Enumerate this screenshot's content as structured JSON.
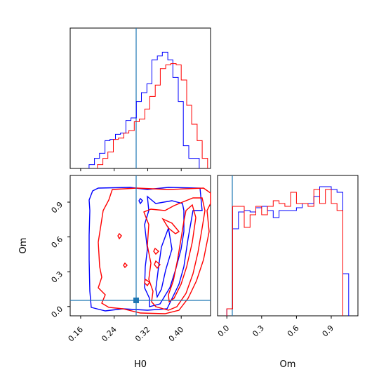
{
  "chart_data": [
    {
      "type": "histogram",
      "panel": "H0 marginal",
      "xlim": [
        0.135,
        0.47
      ],
      "truth": 0.29,
      "series": [
        {
          "name": "",
          "color": "#0000ff",
          "edges": [
            0.18,
            0.193,
            0.205,
            0.218,
            0.23,
            0.243,
            0.255,
            0.268,
            0.28,
            0.293,
            0.305,
            0.318,
            0.33,
            0.343,
            0.355,
            0.368,
            0.38,
            0.393,
            0.405,
            0.418,
            0.43,
            0.443
          ],
          "values": [
            0.03,
            0.08,
            0.12,
            0.22,
            0.23,
            0.27,
            0.28,
            0.38,
            0.4,
            0.53,
            0.6,
            0.67,
            0.86,
            0.89,
            0.92,
            0.86,
            0.72,
            0.53,
            0.18,
            0.08,
            0.08
          ]
        },
        {
          "name": "",
          "color": "#ff0000",
          "edges": [
            0.2,
            0.213,
            0.225,
            0.238,
            0.25,
            0.263,
            0.275,
            0.288,
            0.3,
            0.313,
            0.325,
            0.338,
            0.35,
            0.363,
            0.375,
            0.388,
            0.4,
            0.413,
            0.425,
            0.438,
            0.45,
            0.463
          ],
          "values": [
            0.03,
            0.08,
            0.13,
            0.23,
            0.24,
            0.28,
            0.3,
            0.37,
            0.39,
            0.47,
            0.57,
            0.66,
            0.79,
            0.82,
            0.83,
            0.82,
            0.7,
            0.5,
            0.35,
            0.22,
            0.08
          ]
        }
      ]
    },
    {
      "type": "contour",
      "panel": "H0 vs Om",
      "xlabel": "H0",
      "ylabel": "Om",
      "xlim": [
        0.135,
        0.47
      ],
      "ylim": [
        -0.08,
        1.13
      ],
      "xticks": [
        "0.16",
        "0.24",
        "0.32",
        "0.40"
      ],
      "yticks": [
        "0.0",
        "0.3",
        "0.6",
        "0.9"
      ],
      "truth": [
        0.29,
        0.05
      ],
      "series": [
        {
          "name": "",
          "color": "#0000ff",
          "levels": 3
        },
        {
          "name": "",
          "color": "#ff0000",
          "levels": 3
        }
      ]
    },
    {
      "type": "histogram",
      "panel": "Om marginal",
      "xlabel": "Om",
      "xlim": [
        -0.08,
        1.13
      ],
      "xticks": [
        "0.0",
        "0.3",
        "0.6",
        "0.9"
      ],
      "truth": 0.05,
      "series": [
        {
          "name": "",
          "color": "#0000ff",
          "edges": [
            0.0,
            0.05,
            0.1,
            0.15,
            0.2,
            0.25,
            0.3,
            0.35,
            0.4,
            0.45,
            0.5,
            0.55,
            0.6,
            0.65,
            0.7,
            0.75,
            0.8,
            0.85,
            0.9,
            0.95,
            1.0,
            1.05
          ],
          "values": [
            0.05,
            0.62,
            0.74,
            0.75,
            0.74,
            0.77,
            0.78,
            0.75,
            0.7,
            0.75,
            0.75,
            0.75,
            0.77,
            0.8,
            0.8,
            0.85,
            0.92,
            0.92,
            0.9,
            0.88,
            0.3
          ]
        },
        {
          "name": "",
          "color": "#ff0000",
          "edges": [
            0.0,
            0.05,
            0.1,
            0.15,
            0.2,
            0.25,
            0.3,
            0.35,
            0.4,
            0.45,
            0.5,
            0.55,
            0.6,
            0.65,
            0.7,
            0.75,
            0.8,
            0.85,
            0.9,
            0.95,
            1.0
          ],
          "values": [
            0.05,
            0.78,
            0.78,
            0.63,
            0.72,
            0.78,
            0.72,
            0.78,
            0.82,
            0.8,
            0.78,
            0.88,
            0.8,
            0.8,
            0.78,
            0.9,
            0.8,
            0.9,
            0.8,
            0.75
          ]
        }
      ]
    }
  ]
}
